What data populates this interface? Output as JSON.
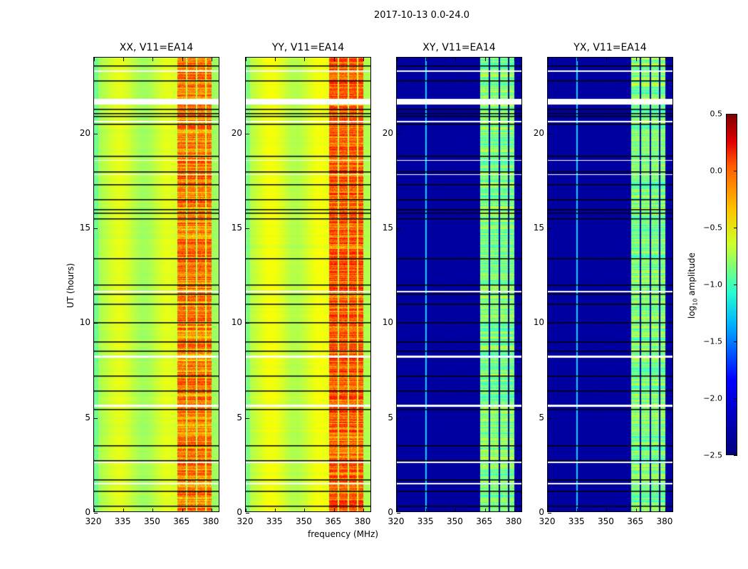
{
  "chart_data": {
    "type": "heatmap",
    "suptitle": "2017-10-13 0.0-24.0",
    "xlabel": "frequency (MHz)",
    "ylabel": "UT (hours)",
    "xlim": [
      320,
      384.4
    ],
    "ylim": [
      0,
      24
    ],
    "xticks": [
      "320",
      "335",
      "350",
      "365",
      "380"
    ],
    "xtick_values": [
      320,
      335,
      350,
      365,
      380
    ],
    "yticks": [
      "0",
      "5",
      "10",
      "15",
      "20"
    ],
    "ytick_values": [
      0,
      5,
      10,
      15,
      20
    ],
    "colorbar": {
      "label_main": "log",
      "label_sub": "10",
      "label_rest": " amplitude",
      "range": [
        -2.5,
        0.5
      ],
      "ticks": [
        "0.5",
        "0.0",
        "−0.5",
        "−1.0",
        "−1.5",
        "−2.0",
        "−2.5"
      ],
      "tick_values": [
        0.5,
        0.0,
        -0.5,
        -1.0,
        -1.5,
        -2.0,
        -2.5
      ]
    },
    "panels": [
      {
        "title": "XX, V11=EA14",
        "background_level": -0.8,
        "band_level": -0.25,
        "cross": false
      },
      {
        "title": "YY, V11=EA14",
        "background_level": -0.75,
        "band_level": -0.15,
        "cross": false
      },
      {
        "title": "XY, V11=EA14",
        "background_level": -2.4,
        "band_level": -1.0,
        "cross": true
      },
      {
        "title": "YX, V11=EA14",
        "background_level": -2.4,
        "band_level": -1.0,
        "cross": true
      }
    ],
    "rfi_band_mhz": [
      [
        363,
        367.3
      ],
      [
        368,
        372.3
      ],
      [
        373,
        377.3
      ],
      [
        378,
        380.5
      ]
    ],
    "flagged_hours": [
      [
        23.25,
        23.35
      ],
      [
        21.55,
        21.85
      ],
      [
        20.6,
        20.68
      ],
      [
        18.55,
        18.62
      ],
      [
        17.8,
        17.86
      ],
      [
        11.62,
        11.68
      ],
      [
        8.15,
        8.25
      ],
      [
        5.55,
        5.65
      ],
      [
        2.58,
        2.66
      ],
      [
        1.45,
        1.52
      ]
    ],
    "scan_boundaries_hours": [
      23.6,
      22.8,
      21.3,
      21.05,
      20.9,
      20.5,
      18.8,
      18.0,
      17.3,
      16.5,
      16.0,
      15.8,
      15.5,
      13.4,
      12.0,
      11.5,
      11.0,
      10.0,
      9.0,
      8.5,
      7.2,
      6.4,
      5.4,
      3.5,
      2.7,
      1.7,
      1.1,
      0.3
    ]
  }
}
